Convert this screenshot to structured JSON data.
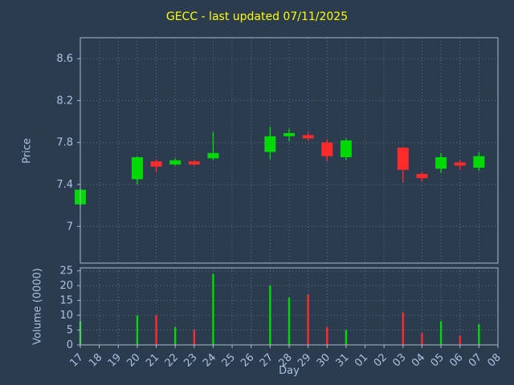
{
  "chart_data": {
    "type": "candlestick+volume",
    "title": "GECC - last updated 07/11/2025",
    "xlabel": "Day",
    "ylabel_price": "Price",
    "ylabel_volume": "Volume (0000)",
    "categories": [
      "17",
      "18",
      "19",
      "20",
      "21",
      "22",
      "23",
      "24",
      "25",
      "26",
      "27",
      "28",
      "29",
      "30",
      "31",
      "01",
      "02",
      "03",
      "04",
      "05",
      "06",
      "07",
      "08"
    ],
    "price_ticks": [
      7.0,
      7.4,
      7.8,
      8.2,
      8.6
    ],
    "price_tick_labels": [
      "7",
      "7.4",
      "7.8",
      "8.2",
      "8.6"
    ],
    "price_range": [
      6.65,
      8.8
    ],
    "volume_ticks": [
      0,
      5,
      10,
      15,
      20,
      25
    ],
    "volume_range": [
      0,
      26
    ],
    "grid": "dotted",
    "legend": "none",
    "colors": {
      "background": "#2c3c50",
      "title": "#ffff00",
      "axis_label": "#a9c3dd",
      "tick_label": "#a9c3dd",
      "spine": "#aeb9c8",
      "grid": "#93a7bd",
      "up": "#00d904",
      "down": "#ff2b2b"
    },
    "candles": [
      {
        "day": "17",
        "open": 7.21,
        "high": 7.36,
        "low": 7.19,
        "close": 7.35,
        "volume": 8
      },
      {
        "day": "20",
        "open": 7.45,
        "high": 7.67,
        "low": 7.4,
        "close": 7.66,
        "volume": 10
      },
      {
        "day": "21",
        "open": 7.62,
        "high": 7.64,
        "low": 7.52,
        "close": 7.57,
        "volume": 10
      },
      {
        "day": "22",
        "open": 7.59,
        "high": 7.65,
        "low": 7.58,
        "close": 7.63,
        "volume": 6
      },
      {
        "day": "23",
        "open": 7.62,
        "high": 7.63,
        "low": 7.58,
        "close": 7.59,
        "volume": 5
      },
      {
        "day": "24",
        "open": 7.65,
        "high": 7.9,
        "low": 7.63,
        "close": 7.7,
        "volume": 24
      },
      {
        "day": "27",
        "open": 7.71,
        "high": 7.95,
        "low": 7.64,
        "close": 7.86,
        "volume": 20
      },
      {
        "day": "28",
        "open": 7.86,
        "high": 7.93,
        "low": 7.81,
        "close": 7.89,
        "volume": 16
      },
      {
        "day": "29",
        "open": 7.87,
        "high": 7.9,
        "low": 7.82,
        "close": 7.84,
        "volume": 17
      },
      {
        "day": "30",
        "open": 7.8,
        "high": 7.83,
        "low": 7.62,
        "close": 7.67,
        "volume": 6
      },
      {
        "day": "31",
        "open": 7.66,
        "high": 7.84,
        "low": 7.63,
        "close": 7.82,
        "volume": 5
      },
      {
        "day": "03",
        "open": 7.75,
        "high": 7.76,
        "low": 7.42,
        "close": 7.54,
        "volume": 11
      },
      {
        "day": "04",
        "open": 7.5,
        "high": 7.52,
        "low": 7.43,
        "close": 7.46,
        "volume": 4
      },
      {
        "day": "05",
        "open": 7.55,
        "high": 7.7,
        "low": 7.51,
        "close": 7.66,
        "volume": 8
      },
      {
        "day": "06",
        "open": 7.61,
        "high": 7.63,
        "low": 7.54,
        "close": 7.58,
        "volume": 3
      },
      {
        "day": "07",
        "open": 7.56,
        "high": 7.71,
        "low": 7.53,
        "close": 7.67,
        "volume": 7
      }
    ]
  }
}
